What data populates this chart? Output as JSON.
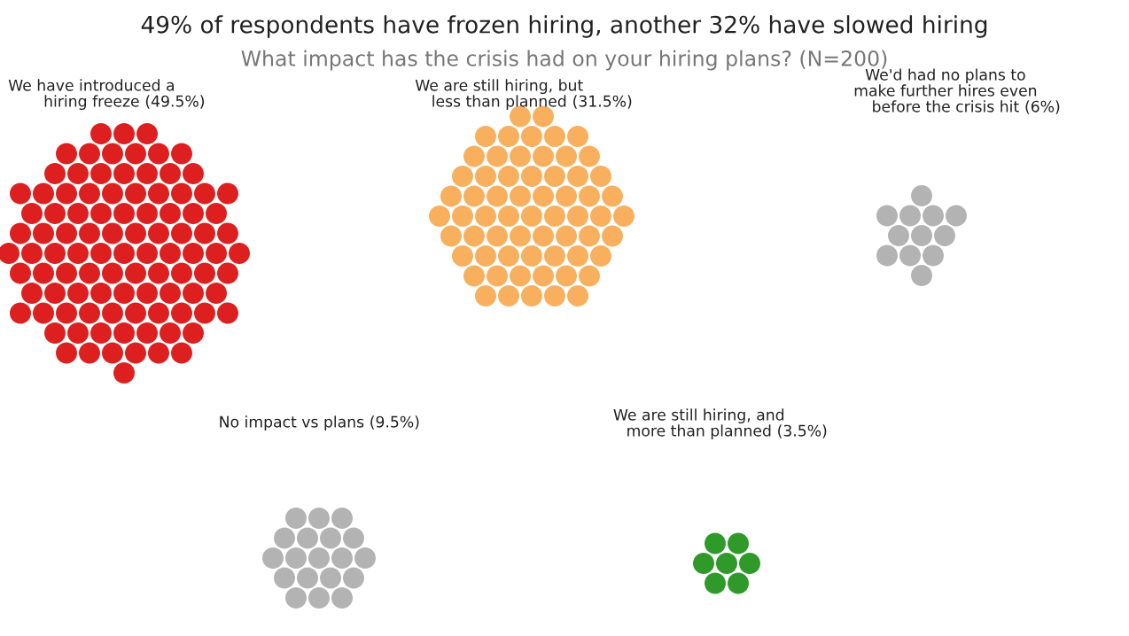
{
  "chart_data": {
    "type": "other",
    "title": "49% of respondents have frozen hiring, another 32% have slowed hiring",
    "subtitle": "What impact has the crisis had on your hiring plans? (N=200)",
    "categories": [
      "We have introduced a\nhiring freeze",
      "We are still hiring, but\nless than planned",
      "We'd had no plans to\nmake further hires even\nbefore the crisis hit",
      "No impact vs plans",
      "We are still hiring, and\nmore than planned"
    ],
    "values": [
      49.5,
      31.5,
      6,
      9.5,
      3.5
    ],
    "value_labels": [
      "(49.5%)",
      "(31.5%)",
      "(6%)",
      "(9.5%)",
      "(3.5%)"
    ],
    "colors": [
      "#dd1f1f",
      "#f8b05e",
      "#b3b3b3",
      "#b3b3b3",
      "#2f9a2a"
    ]
  }
}
